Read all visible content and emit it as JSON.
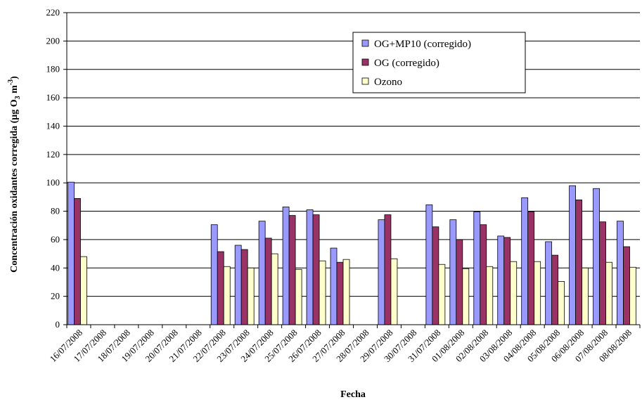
{
  "chart_data": {
    "type": "bar",
    "xlabel": "Fecha",
    "ylabel": "Concentración oxidantes corregida (μg O",
    "ylabel_sub": "3",
    "ylabel_mid": " m",
    "ylabel_sup": "-3",
    "ylabel_end": ")",
    "ylim": [
      0,
      220
    ],
    "yticks": [
      0,
      20,
      40,
      60,
      80,
      100,
      120,
      140,
      160,
      180,
      200,
      220
    ],
    "grid": true,
    "legend_position": "top-right",
    "categories": [
      "16/07/2008",
      "17/07/2008",
      "18/07/2008",
      "19/07/2008",
      "20/07/2008",
      "21/07/2008",
      "22/07/2008",
      "23/07/2008",
      "24/07/2008",
      "25/07/2008",
      "26/07/2008",
      "27/07/2008",
      "28/07/2008",
      "29/07/2008",
      "30/07/2008",
      "31/07/2008",
      "01/08/2008",
      "02/08/2008",
      "03/08/2008",
      "04/08/2008",
      "05/08/2008",
      "06/08/2008",
      "07/08/2008",
      "08/08/2008"
    ],
    "series": [
      {
        "name": "OG+MP10 (corregido)",
        "color": "#9999ff",
        "values": [
          100.5,
          null,
          null,
          null,
          null,
          null,
          70.5,
          56,
          73,
          83,
          81,
          54,
          null,
          74,
          null,
          84.5,
          74,
          79.5,
          62.5,
          89.5,
          58.5,
          98,
          96,
          73
        ]
      },
      {
        "name": "OG (corregido)",
        "color": "#993366",
        "values": [
          89,
          null,
          null,
          null,
          null,
          null,
          51.5,
          53,
          61,
          77,
          77.5,
          44,
          null,
          77.5,
          null,
          69,
          60,
          70.5,
          61.5,
          79.5,
          49,
          88,
          72.5,
          55
        ]
      },
      {
        "name": "Ozono",
        "color": "#ffffcc",
        "values": [
          48,
          null,
          null,
          null,
          null,
          null,
          41,
          40,
          50,
          39,
          45,
          46,
          null,
          46.5,
          null,
          42.5,
          39.5,
          41,
          44.5,
          44.5,
          30.5,
          40,
          44,
          40.5
        ]
      }
    ]
  }
}
